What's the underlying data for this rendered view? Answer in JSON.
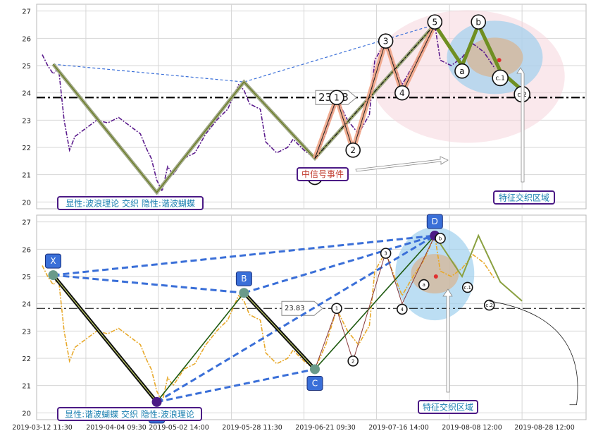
{
  "chart_data": [
    {
      "type": "line",
      "panel": "top",
      "ylim": [
        19.75,
        27.25
      ],
      "yticks": [
        20,
        21,
        22,
        23,
        24,
        25,
        26,
        27
      ],
      "hline": {
        "value": 23.83,
        "label": "23.83"
      },
      "series": [
        {
          "name": "",
          "color": "#5a1a8c",
          "points": [
            [
              0.0,
              25.4
            ],
            [
              0.01,
              25.0
            ],
            [
              0.02,
              24.7
            ],
            [
              0.03,
              24.9
            ],
            [
              0.04,
              23.0
            ],
            [
              0.05,
              21.9
            ],
            [
              0.06,
              22.4
            ],
            [
              0.08,
              22.7
            ],
            [
              0.1,
              23.0
            ],
            [
              0.12,
              22.9
            ],
            [
              0.14,
              23.1
            ],
            [
              0.16,
              22.8
            ],
            [
              0.18,
              22.5
            ],
            [
              0.19,
              22.0
            ],
            [
              0.2,
              21.6
            ],
            [
              0.21,
              20.8
            ],
            [
              0.22,
              20.4
            ],
            [
              0.23,
              21.3
            ],
            [
              0.24,
              21.0
            ],
            [
              0.26,
              21.6
            ],
            [
              0.28,
              21.8
            ],
            [
              0.3,
              22.5
            ],
            [
              0.32,
              23.0
            ],
            [
              0.34,
              23.4
            ],
            [
              0.36,
              24.3
            ],
            [
              0.37,
              24.1
            ],
            [
              0.38,
              23.6
            ],
            [
              0.4,
              23.4
            ],
            [
              0.41,
              22.2
            ],
            [
              0.43,
              21.8
            ],
            [
              0.45,
              22.0
            ],
            [
              0.46,
              22.3
            ],
            [
              0.48,
              21.9
            ],
            [
              0.5,
              21.6
            ],
            [
              0.52,
              22.5
            ],
            [
              0.54,
              23.8
            ],
            [
              0.56,
              23.0
            ],
            [
              0.58,
              22.5
            ],
            [
              0.6,
              23.2
            ],
            [
              0.61,
              25.2
            ],
            [
              0.63,
              25.9
            ],
            [
              0.64,
              25.3
            ],
            [
              0.66,
              24.3
            ],
            [
              0.68,
              25.0
            ],
            [
              0.7,
              25.6
            ],
            [
              0.72,
              26.5
            ],
            [
              0.73,
              25.2
            ],
            [
              0.75,
              25.0
            ],
            [
              0.77,
              25.3
            ],
            [
              0.79,
              25.8
            ],
            [
              0.81,
              25.5
            ],
            [
              0.83,
              24.9
            ]
          ]
        }
      ],
      "zigzag": {
        "color": "#6b7d22",
        "points": [
          [
            0.02,
            25.05
          ],
          [
            0.21,
            20.35
          ],
          [
            0.37,
            24.4
          ],
          [
            0.5,
            21.6
          ],
          [
            0.72,
            26.5
          ],
          [
            0.77,
            25.0
          ],
          [
            0.8,
            26.5
          ],
          [
            0.84,
            24.8
          ],
          [
            0.88,
            24.1
          ]
        ]
      },
      "dashed_line": {
        "color": "#3a6fd8",
        "points": [
          [
            0.02,
            25.05
          ],
          [
            0.37,
            24.4
          ],
          [
            0.72,
            26.5
          ]
        ]
      },
      "wave_labels": [
        "0",
        "1",
        "2",
        "3",
        "4",
        "5",
        "a",
        "b",
        "c.1",
        "c.2"
      ],
      "annotations": [
        "显性:波浪理论 交织 隐性:谐波蝴蝶",
        "中信号事件",
        "特征交织区域"
      ]
    },
    {
      "type": "line",
      "panel": "bottom",
      "ylim": [
        19.75,
        27.25
      ],
      "yticks": [
        20,
        21,
        22,
        23,
        24,
        25,
        26,
        27
      ],
      "hline": {
        "value": 23.83,
        "label": "23.83"
      },
      "series": [
        {
          "name": "",
          "color": "#e8a92a",
          "points": [
            [
              0.0,
              25.4
            ],
            [
              0.01,
              25.0
            ],
            [
              0.02,
              24.7
            ],
            [
              0.03,
              24.9
            ],
            [
              0.04,
              23.0
            ],
            [
              0.05,
              21.9
            ],
            [
              0.06,
              22.4
            ],
            [
              0.08,
              22.7
            ],
            [
              0.1,
              23.0
            ],
            [
              0.12,
              22.9
            ],
            [
              0.14,
              23.1
            ],
            [
              0.16,
              22.8
            ],
            [
              0.18,
              22.5
            ],
            [
              0.19,
              22.0
            ],
            [
              0.2,
              21.6
            ],
            [
              0.21,
              20.8
            ],
            [
              0.22,
              20.4
            ],
            [
              0.23,
              21.3
            ],
            [
              0.24,
              21.0
            ],
            [
              0.26,
              21.6
            ],
            [
              0.28,
              21.8
            ],
            [
              0.3,
              22.5
            ],
            [
              0.32,
              23.0
            ],
            [
              0.34,
              23.4
            ],
            [
              0.36,
              24.3
            ],
            [
              0.37,
              24.1
            ],
            [
              0.38,
              23.6
            ],
            [
              0.4,
              23.4
            ],
            [
              0.41,
              22.2
            ],
            [
              0.43,
              21.8
            ],
            [
              0.45,
              22.0
            ],
            [
              0.46,
              22.3
            ],
            [
              0.48,
              21.9
            ],
            [
              0.5,
              21.6
            ],
            [
              0.52,
              22.5
            ],
            [
              0.54,
              23.8
            ],
            [
              0.56,
              23.0
            ],
            [
              0.58,
              22.5
            ],
            [
              0.6,
              23.2
            ],
            [
              0.61,
              25.2
            ],
            [
              0.63,
              25.9
            ],
            [
              0.64,
              25.3
            ],
            [
              0.66,
              24.3
            ],
            [
              0.68,
              25.0
            ],
            [
              0.7,
              25.6
            ],
            [
              0.72,
              26.5
            ],
            [
              0.73,
              25.2
            ],
            [
              0.75,
              25.0
            ],
            [
              0.77,
              25.3
            ],
            [
              0.79,
              25.8
            ],
            [
              0.81,
              25.5
            ],
            [
              0.83,
              24.9
            ]
          ]
        }
      ],
      "harmonic_points": [
        {
          "label": "X",
          "x": 0.02,
          "y": 25.05
        },
        {
          "label": "A",
          "x": 0.21,
          "y": 20.4
        },
        {
          "label": "B",
          "x": 0.37,
          "y": 24.4
        },
        {
          "label": "C",
          "x": 0.5,
          "y": 21.6
        },
        {
          "label": "D",
          "x": 0.72,
          "y": 26.5
        }
      ],
      "wave_labels": [
        "1",
        "2",
        "3",
        "4",
        "a",
        "b",
        "c.1",
        "c.2"
      ],
      "annotations": [
        "显性:谐波蝴蝶 交织 隐性:波浪理论",
        "特征交织区域"
      ],
      "xticks": [
        "2019-03-12 11:30",
        "2019-04-04 09:30",
        "2019-05-02 14:00",
        "2019-05-28 11:30",
        "2019-06-21 09:30",
        "2019-07-16 14:00",
        "2019-08-08 12:00",
        "2019-08-28 12:00"
      ]
    }
  ]
}
